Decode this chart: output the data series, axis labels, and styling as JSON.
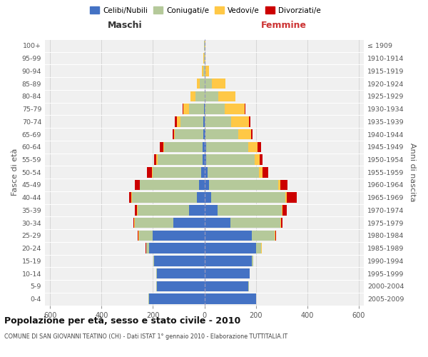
{
  "age_groups": [
    "0-4",
    "5-9",
    "10-14",
    "15-19",
    "20-24",
    "25-29",
    "30-34",
    "35-39",
    "40-44",
    "45-49",
    "50-54",
    "55-59",
    "60-64",
    "65-69",
    "70-74",
    "75-79",
    "80-84",
    "85-89",
    "90-94",
    "95-99",
    "100+"
  ],
  "birth_years": [
    "2005-2009",
    "2000-2004",
    "1995-1999",
    "1990-1994",
    "1985-1989",
    "1980-1984",
    "1975-1979",
    "1970-1974",
    "1965-1969",
    "1960-1964",
    "1955-1959",
    "1950-1954",
    "1945-1949",
    "1940-1944",
    "1935-1939",
    "1930-1934",
    "1925-1929",
    "1920-1924",
    "1915-1919",
    "1910-1914",
    "≤ 1909"
  ],
  "maschi": {
    "celibi": [
      215,
      185,
      185,
      195,
      215,
      200,
      120,
      60,
      30,
      20,
      12,
      8,
      6,
      4,
      3,
      1,
      0,
      0,
      0,
      0,
      0
    ],
    "coniugati": [
      2,
      2,
      2,
      2,
      10,
      55,
      150,
      200,
      252,
      230,
      190,
      175,
      150,
      110,
      90,
      60,
      35,
      18,
      5,
      2,
      1
    ],
    "vedovi": [
      0,
      0,
      0,
      0,
      2,
      2,
      2,
      2,
      2,
      2,
      3,
      3,
      4,
      5,
      14,
      20,
      18,
      12,
      4,
      1,
      0
    ],
    "divorziati": [
      0,
      0,
      0,
      0,
      1,
      2,
      3,
      8,
      10,
      18,
      18,
      10,
      12,
      5,
      8,
      3,
      0,
      0,
      0,
      0,
      0
    ]
  },
  "femmine": {
    "nubili": [
      200,
      170,
      175,
      185,
      200,
      185,
      100,
      50,
      25,
      18,
      12,
      8,
      6,
      3,
      2,
      1,
      0,
      0,
      0,
      0,
      0
    ],
    "coniugate": [
      2,
      2,
      2,
      5,
      20,
      88,
      195,
      250,
      290,
      268,
      200,
      188,
      165,
      130,
      102,
      78,
      55,
      28,
      5,
      2,
      1
    ],
    "vedove": [
      0,
      0,
      0,
      0,
      2,
      3,
      3,
      5,
      5,
      10,
      15,
      20,
      35,
      50,
      70,
      78,
      65,
      55,
      14,
      2,
      2
    ],
    "divorziate": [
      0,
      0,
      0,
      0,
      2,
      3,
      5,
      15,
      38,
      28,
      20,
      10,
      15,
      5,
      5,
      2,
      2,
      0,
      0,
      0,
      0
    ]
  },
  "colors": {
    "celibi": "#4472c4",
    "coniugati": "#b5c99a",
    "vedovi": "#ffc846",
    "divorziati": "#cc0000"
  },
  "xlim": 620,
  "title": "Popolazione per età, sesso e stato civile - 2010",
  "subtitle": "COMUNE DI SAN GIOVANNI TEATINO (CH) - Dati ISTAT 1° gennaio 2010 - Elaborazione TUTTITALIA.IT",
  "ylabel_left": "Fasce di età",
  "ylabel_right": "Anni di nascita",
  "xlabel_maschi": "Maschi",
  "xlabel_femmine": "Femmine",
  "bg_color": "#ffffff",
  "plot_bg": "#f0f0f0",
  "grid_color": "#cccccc",
  "legend_labels": [
    "Celibi/Nubili",
    "Coniugati/e",
    "Vedovi/e",
    "Divorziati/e"
  ]
}
